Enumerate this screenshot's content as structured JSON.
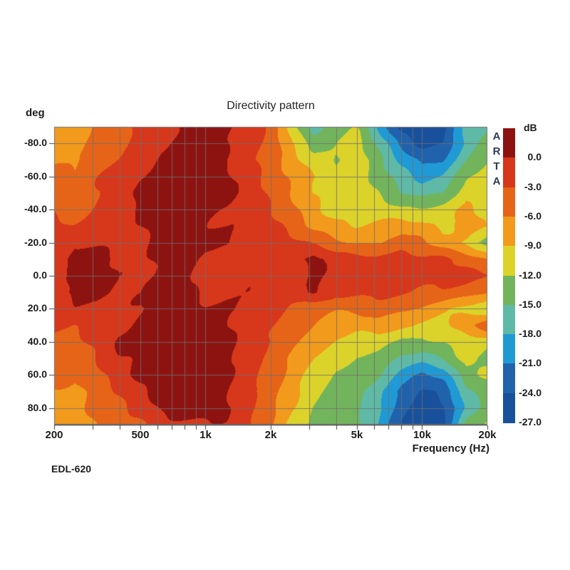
{
  "chart": {
    "title": "Directivity pattern",
    "y_axis_unit_label": "deg",
    "x_axis_label": "Frequency (Hz)",
    "footer_label": "EDL-620",
    "watermark": "ARTA",
    "colorbar": {
      "title": "dB",
      "tick_labels": [
        "0.0",
        "-3.0",
        "-6.0",
        "-9.0",
        "-12.0",
        "-15.0",
        "-18.0",
        "-21.0",
        "-24.0",
        "-27.0"
      ]
    },
    "x_tick_labels": [
      {
        "freq": 200,
        "label": "200"
      },
      {
        "freq": 500,
        "label": "500"
      },
      {
        "freq": 1000,
        "label": "1k"
      },
      {
        "freq": 2000,
        "label": "2k"
      },
      {
        "freq": 5000,
        "label": "5k"
      },
      {
        "freq": 10000,
        "label": "10k"
      },
      {
        "freq": 20000,
        "label": "20k"
      }
    ],
    "y_tick_labels": [
      {
        "angle": -80,
        "label": "-80.0"
      },
      {
        "angle": -60,
        "label": "-60.0"
      },
      {
        "angle": -40,
        "label": "-40.0"
      },
      {
        "angle": -20,
        "label": "-20.0"
      },
      {
        "angle": 0,
        "label": "0.0"
      },
      {
        "angle": 20,
        "label": "20.0"
      },
      {
        "angle": 40,
        "label": "40.0"
      },
      {
        "angle": 60,
        "label": "60.0"
      },
      {
        "angle": 80,
        "label": "80.0"
      }
    ]
  },
  "chart_data": {
    "type": "heatmap",
    "title": "Directivity pattern",
    "xlabel": "Frequency (Hz)",
    "ylabel": "deg",
    "source_label": "EDL-620",
    "x_scale": "log",
    "x_range_hz": [
      200,
      20000
    ],
    "y_range_deg": [
      -90,
      90
    ],
    "grid": true,
    "grid_color": "#6e6e6e",
    "legend_position": "right",
    "levels_db": [
      0,
      -3,
      -6,
      -9,
      -12,
      -15,
      -18,
      -21,
      -24
    ],
    "band_colors": [
      "#8d1311",
      "#d7371b",
      "#e66418",
      "#f29a1c",
      "#dbd32a",
      "#72b45c",
      "#5ebaa6",
      "#209ad5",
      "#2062ac",
      "#18509c"
    ],
    "frequencies_hz": [
      200,
      250,
      315,
      400,
      500,
      630,
      800,
      1000,
      1250,
      1600,
      2000,
      2500,
      3150,
      4000,
      5000,
      6300,
      8000,
      10000,
      12500,
      16000,
      20000
    ],
    "angles_deg": [
      -90,
      -80,
      -70,
      -60,
      -50,
      -40,
      -30,
      -20,
      -10,
      0,
      10,
      20,
      30,
      40,
      50,
      60,
      70,
      80,
      90
    ],
    "values_db": [
      [
        -7.5,
        -7.5,
        -5,
        -4,
        -2.5,
        -1,
        0.5,
        1,
        0.5,
        -1.5,
        -4,
        -10,
        -17,
        -13,
        -12,
        -19,
        -25,
        -26,
        -25,
        -17,
        -15.5
      ],
      [
        -7,
        -7.5,
        -4.5,
        -3.5,
        -2,
        -0.5,
        1,
        1,
        0.5,
        -1.5,
        -4,
        -9,
        -13,
        -12,
        -10.5,
        -16,
        -22,
        -25,
        -24,
        -17,
        -13.5
      ],
      [
        -6.5,
        -7,
        -4,
        -3,
        -1.5,
        0.5,
        1,
        1,
        0,
        -2,
        -4.5,
        -8,
        -11,
        -12,
        -10,
        -14,
        -19,
        -22,
        -21,
        -15,
        -12
      ],
      [
        -4.5,
        -5.5,
        -3.5,
        -2.5,
        -0.3,
        1,
        1,
        1,
        0.5,
        -1.5,
        -4,
        -6.5,
        -9,
        -11,
        -10,
        -13,
        -16.5,
        -19.5,
        -18,
        -12,
        -10
      ],
      [
        -4,
        -4.5,
        -3,
        -2,
        0.5,
        1,
        1,
        1,
        0.5,
        -1,
        -3.5,
        -6,
        -9,
        -11,
        -10.5,
        -12,
        -14.5,
        -16,
        -15,
        -10.5,
        -9
      ],
      [
        -3.5,
        -4,
        -2.5,
        -1.5,
        0.5,
        1,
        1,
        0.5,
        0,
        -1,
        -3,
        -5,
        -8,
        -10.5,
        -11,
        -10.5,
        -11.5,
        -11.5,
        -10.5,
        -8.5,
        -10
      ],
      [
        -2.5,
        -3,
        -2,
        -1,
        -0.3,
        1,
        1,
        0.5,
        0,
        -0.5,
        -2.5,
        -4,
        -6.5,
        -8,
        -9,
        -8.5,
        -7.5,
        -8,
        -9.5,
        -7.5,
        -9.5
      ],
      [
        -1.5,
        -0.5,
        -0.5,
        -0.5,
        -0.5,
        1,
        1,
        0.5,
        0.5,
        -0.5,
        -1.5,
        -2.5,
        -3.5,
        -5,
        -6.5,
        -6,
        -4.5,
        -5.5,
        -7.5,
        -9.5,
        -13
      ],
      [
        -1,
        1,
        1,
        -0.5,
        -0.5,
        1,
        1,
        -1,
        -1,
        -0.5,
        -1,
        -1.5,
        1,
        -1.5,
        -1.5,
        -2,
        -2,
        -2.5,
        -2.5,
        -4,
        -6
      ],
      [
        -1,
        0.5,
        0.5,
        -0.5,
        -0.5,
        0.5,
        1,
        -1,
        -1,
        -0.5,
        -1,
        -1.5,
        0.3,
        -1,
        -1.5,
        -1.5,
        -1.5,
        -2,
        -2,
        -2,
        -2.5
      ],
      [
        -1,
        1,
        1,
        -0.5,
        -0.5,
        1,
        1,
        -0.5,
        -0.5,
        -0.5,
        -1,
        -2,
        1,
        -2,
        -2.5,
        -2.5,
        -2.5,
        -3,
        -3.5,
        -4.5,
        -6
      ],
      [
        -1.5,
        -0.5,
        -0.5,
        -0.5,
        0,
        1,
        1,
        0.5,
        0.5,
        -0.5,
        -2,
        -3.5,
        -5,
        -5.5,
        -5,
        -4.5,
        -5.5,
        -6.5,
        -8,
        -10,
        -12.5
      ],
      [
        -2.5,
        -3,
        -2,
        -0.5,
        1,
        1,
        1,
        1,
        0.5,
        -1,
        -2.5,
        -4,
        -6,
        -7.5,
        -8,
        -7,
        -8.5,
        -9.5,
        -10,
        -7,
        -2.9
      ],
      [
        -3.5,
        -4,
        -2.5,
        0.5,
        1,
        1,
        1,
        1,
        0.5,
        -1,
        -3,
        -5,
        -7.5,
        -9.5,
        -10,
        -10.5,
        -12.5,
        -13,
        -12,
        -10,
        -11
      ],
      [
        -4,
        -4.5,
        -3,
        -0.5,
        0.5,
        1,
        1,
        1,
        0.5,
        -1.5,
        -4,
        -6,
        -9,
        -11.5,
        -12.5,
        -13,
        -15.5,
        -16.5,
        -15,
        -11,
        -12.5
      ],
      [
        -4.5,
        -5.5,
        -3.5,
        -1.5,
        0.5,
        1,
        1,
        1,
        0.5,
        -2,
        -4.5,
        -7,
        -10,
        -12.5,
        -13.5,
        -15,
        -19,
        -21.5,
        -20,
        -13,
        -12
      ],
      [
        -6.5,
        -7,
        -4.5,
        -2.5,
        -0.5,
        1,
        1,
        1,
        0.5,
        -2.5,
        -5,
        -8,
        -11,
        -13,
        -14.5,
        -17,
        -22,
        -24.5,
        -23,
        -16,
        -13
      ],
      [
        -7,
        -7.5,
        -5,
        -3.5,
        -1.5,
        0.5,
        1,
        1,
        0.5,
        -2,
        -5,
        -9,
        -12,
        -13.5,
        -14,
        -17.5,
        -23,
        -25.5,
        -24.5,
        -17,
        -14
      ],
      [
        -7.5,
        -8,
        -6,
        -4.5,
        -3.5,
        -0.5,
        -0.5,
        -0.5,
        -0.5,
        -2.5,
        -5.5,
        -10,
        -13,
        -14,
        -14.5,
        -18,
        -24,
        -26,
        -25,
        -14,
        -11
      ]
    ]
  }
}
